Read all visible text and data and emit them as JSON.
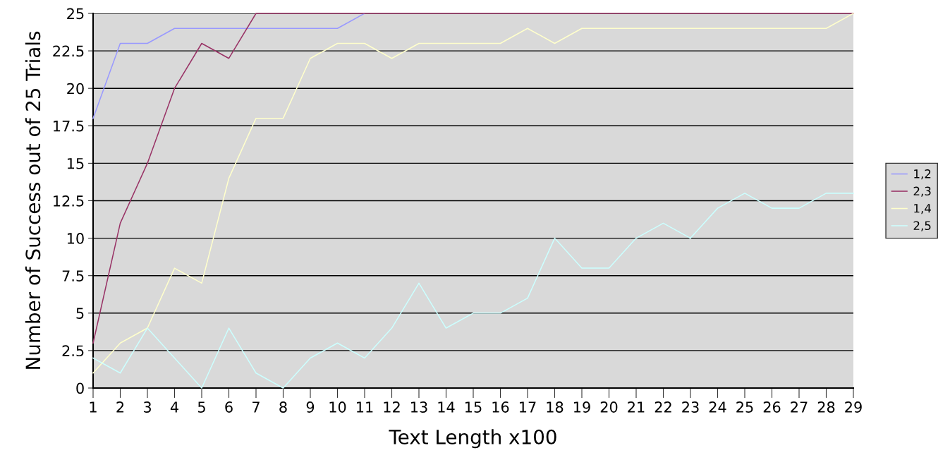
{
  "chart_data": {
    "type": "line",
    "xlabel": "Text Length x100",
    "ylabel": "Number of Success out of 25 Trials",
    "categories": [
      "1",
      "2",
      "3",
      "4",
      "5",
      "6",
      "7",
      "8",
      "9",
      "10",
      "11",
      "12",
      "13",
      "14",
      "15",
      "16",
      "17",
      "18",
      "19",
      "20",
      "21",
      "22",
      "23",
      "24",
      "25",
      "26",
      "27",
      "28",
      "29"
    ],
    "series": [
      {
        "name": "1,2",
        "color": "#9999ff",
        "values": [
          18,
          23,
          23,
          24,
          24,
          24,
          24,
          24,
          24,
          24,
          25,
          null,
          null,
          null,
          null,
          null,
          null,
          null,
          null,
          null,
          null,
          null,
          null,
          null,
          null,
          null,
          null,
          null,
          null
        ]
      },
      {
        "name": "2,3",
        "color": "#993366",
        "values": [
          3,
          11,
          15,
          20,
          23,
          22,
          25,
          25,
          25,
          25,
          25,
          25,
          25,
          25,
          25,
          25,
          25,
          25,
          25,
          25,
          25,
          25,
          25,
          25,
          25,
          25,
          25,
          25,
          25
        ]
      },
      {
        "name": "1,4",
        "color": "#ffffcc",
        "values": [
          1,
          3,
          4,
          8,
          7,
          14,
          18,
          18,
          22,
          23,
          23,
          22,
          23,
          23,
          23,
          23,
          24,
          23,
          24,
          24,
          24,
          24,
          24,
          24,
          24,
          24,
          24,
          24,
          25
        ]
      },
      {
        "name": "2,5",
        "color": "#ccffff",
        "values": [
          2,
          1,
          4,
          2,
          0,
          4,
          1,
          0,
          2,
          3,
          2,
          4,
          7,
          4,
          5,
          5,
          6,
          10,
          8,
          8,
          10,
          11,
          10,
          12,
          13,
          12,
          12,
          13,
          13
        ]
      }
    ],
    "ylim": [
      0,
      25
    ],
    "yticks": [
      0,
      2.5,
      5,
      7.5,
      10,
      12.5,
      15,
      17.5,
      20,
      22.5,
      25
    ],
    "grid": "y",
    "legend": "right",
    "marker": "none",
    "line_style": "solid"
  }
}
